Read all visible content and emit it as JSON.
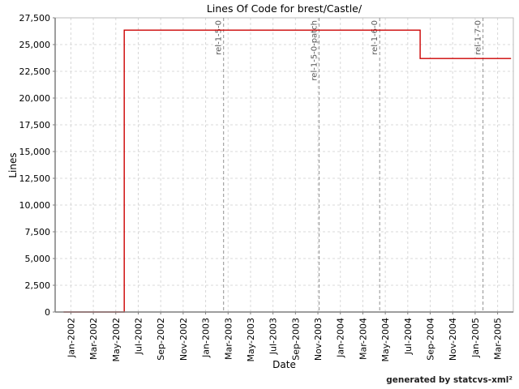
{
  "chart_data": {
    "type": "line",
    "subtype": "step",
    "title": "Lines Of Code for brest/Castle/",
    "xlabel": "Date",
    "ylabel": "Lines",
    "footer_credit": "generated by statcvs-xml²",
    "grid": true,
    "legend_position": "none",
    "x_unit": "months since Jan-2002",
    "xlim": [
      -1.4,
      39.4
    ],
    "ylim": [
      0,
      27500
    ],
    "x_ticks": [
      {
        "month": 0,
        "label": "Jan-2002"
      },
      {
        "month": 2,
        "label": "Mar-2002"
      },
      {
        "month": 4,
        "label": "May-2002"
      },
      {
        "month": 6,
        "label": "Jul-2002"
      },
      {
        "month": 8,
        "label": "Sep-2002"
      },
      {
        "month": 10,
        "label": "Nov-2002"
      },
      {
        "month": 12,
        "label": "Jan-2003"
      },
      {
        "month": 14,
        "label": "Mar-2003"
      },
      {
        "month": 16,
        "label": "May-2003"
      },
      {
        "month": 18,
        "label": "Jul-2003"
      },
      {
        "month": 20,
        "label": "Sep-2003"
      },
      {
        "month": 22,
        "label": "Nov-2003"
      },
      {
        "month": 24,
        "label": "Jan-2004"
      },
      {
        "month": 26,
        "label": "Mar-2004"
      },
      {
        "month": 28,
        "label": "May-2004"
      },
      {
        "month": 30,
        "label": "Jul-2004"
      },
      {
        "month": 32,
        "label": "Sep-2004"
      },
      {
        "month": 34,
        "label": "Nov-2004"
      },
      {
        "month": 36,
        "label": "Jan-2005"
      },
      {
        "month": 38,
        "label": "Mar-2005"
      }
    ],
    "y_ticks": [
      {
        "value": 0,
        "label": "0"
      },
      {
        "value": 2500,
        "label": "2,500"
      },
      {
        "value": 5000,
        "label": "5,000"
      },
      {
        "value": 7500,
        "label": "7,500"
      },
      {
        "value": 10000,
        "label": "10,000"
      },
      {
        "value": 12500,
        "label": "12,500"
      },
      {
        "value": 15000,
        "label": "15,000"
      },
      {
        "value": 17500,
        "label": "17,500"
      },
      {
        "value": 20000,
        "label": "20,000"
      },
      {
        "value": 22500,
        "label": "22,500"
      },
      {
        "value": 25000,
        "label": "25,000"
      },
      {
        "value": 27500,
        "label": "27,500"
      }
    ],
    "series": [
      {
        "name": "lines-of-code",
        "color": "#cc0000",
        "points": [
          {
            "approx_date": "mid-Dec-2001",
            "month": -0.65,
            "loc": 0
          },
          {
            "approx_date": "late-May-2002",
            "month": 4.75,
            "loc": 0
          },
          {
            "approx_date": "late-May-2002",
            "month": 4.75,
            "loc": 26350
          },
          {
            "approx_date": "early-Aug-2004",
            "month": 31.1,
            "loc": 26350
          },
          {
            "approx_date": "early-Aug-2004",
            "month": 31.1,
            "loc": 23700
          },
          {
            "approx_date": "early-Apr-2005",
            "month": 39.2,
            "loc": 23700
          }
        ]
      }
    ],
    "release_markers": [
      {
        "label": "rel-1-5-0",
        "month": 13.6,
        "approx_date": "Feb-2003"
      },
      {
        "label": "rel-1-5-0-patch",
        "month": 22.1,
        "approx_date": "Nov-2003"
      },
      {
        "label": "rel-1-6-0",
        "month": 27.5,
        "approx_date": "Apr-2004"
      },
      {
        "label": "rel-1-7-0",
        "month": 36.7,
        "approx_date": "Feb-2005"
      }
    ],
    "colors": {
      "series_line": "#cc0000",
      "grid_line": "#d8d8d8",
      "plot_border": "#bbbbbb",
      "axis_line": "#7f7f7f",
      "release_line": "#909090",
      "release_label": "#555555",
      "tick_label": "#000000",
      "background": "#ffffff"
    }
  }
}
